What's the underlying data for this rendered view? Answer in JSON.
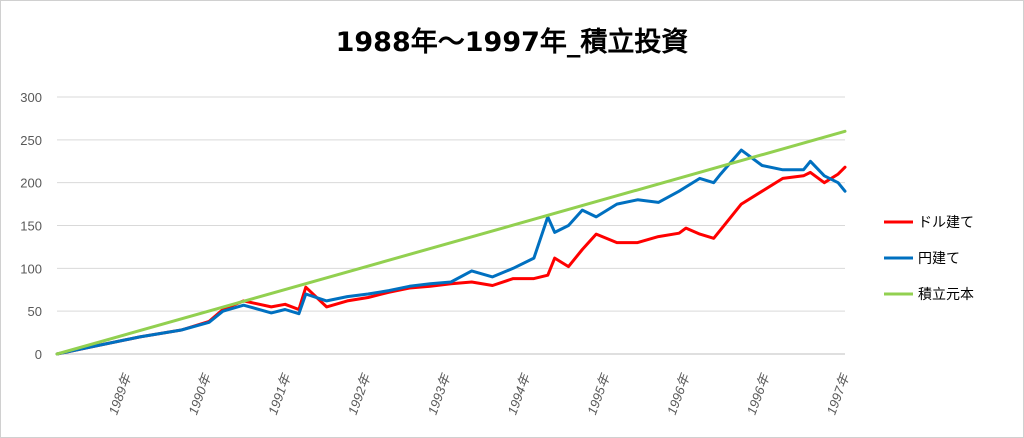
{
  "chart_data": {
    "type": "line",
    "title": "1988年～1997年_積立投資",
    "xlabel": "",
    "ylabel": "",
    "ylim": [
      0,
      300
    ],
    "yticks": [
      "0",
      "50",
      "100",
      "150",
      "200",
      "250",
      "300"
    ],
    "xticks": [
      "1989年",
      "1990年",
      "1991年",
      "1992年",
      "1993年",
      "1994年",
      "1995年",
      "1996年",
      "1996年",
      "1997年"
    ],
    "x_start": "1988-01",
    "x_end": "1997-07",
    "grid": true,
    "legend_position": "right",
    "series": [
      {
        "name": "ドル建て",
        "color": "#ff0000",
        "x": [
          "1988-01",
          "1988-07",
          "1989-01",
          "1989-07",
          "1989-11",
          "1990-01",
          "1990-04",
          "1990-08",
          "1990-10",
          "1990-12",
          "1991-01",
          "1991-04",
          "1991-07",
          "1991-10",
          "1992-01",
          "1992-04",
          "1992-07",
          "1992-10",
          "1993-01",
          "1993-04",
          "1993-07",
          "1993-10",
          "1993-12",
          "1994-01",
          "1994-03",
          "1994-05",
          "1994-07",
          "1994-10",
          "1995-01",
          "1995-04",
          "1995-07",
          "1995-08",
          "1995-10",
          "1995-12",
          "1996-01",
          "1996-04",
          "1996-07",
          "1996-10",
          "1997-01",
          "1997-02",
          "1997-04",
          "1997-06",
          "1997-07"
        ],
        "values": [
          0,
          10,
          20,
          28,
          38,
          52,
          62,
          55,
          58,
          52,
          78,
          55,
          62,
          66,
          72,
          77,
          79,
          82,
          84,
          80,
          88,
          88,
          92,
          112,
          102,
          122,
          140,
          130,
          130,
          137,
          141,
          147,
          140,
          135,
          145,
          175,
          190,
          205,
          208,
          212,
          200,
          210,
          218
        ]
      },
      {
        "name": "円建て",
        "color": "#0070c0",
        "x": [
          "1988-01",
          "1988-07",
          "1989-01",
          "1989-07",
          "1989-11",
          "1990-01",
          "1990-04",
          "1990-08",
          "1990-10",
          "1990-12",
          "1991-01",
          "1991-04",
          "1991-07",
          "1991-10",
          "1992-01",
          "1992-04",
          "1992-07",
          "1992-10",
          "1993-01",
          "1993-04",
          "1993-07",
          "1993-10",
          "1993-12",
          "1994-01",
          "1994-03",
          "1994-05",
          "1994-07",
          "1994-10",
          "1995-01",
          "1995-04",
          "1995-07",
          "1995-08",
          "1995-10",
          "1995-12",
          "1996-01",
          "1996-04",
          "1996-07",
          "1996-10",
          "1997-01",
          "1997-02",
          "1997-04",
          "1997-06",
          "1997-07"
        ],
        "values": [
          0,
          10,
          20,
          28,
          37,
          50,
          57,
          48,
          52,
          47,
          70,
          62,
          67,
          70,
          74,
          79,
          82,
          84,
          97,
          90,
          100,
          112,
          160,
          142,
          150,
          168,
          160,
          175,
          180,
          177,
          190,
          195,
          205,
          200,
          210,
          238,
          220,
          215,
          215,
          225,
          208,
          200,
          190
        ]
      },
      {
        "name": "積立元本",
        "color": "#92d050",
        "x": [
          "1988-01",
          "1997-07"
        ],
        "values": [
          0,
          260
        ]
      }
    ]
  }
}
